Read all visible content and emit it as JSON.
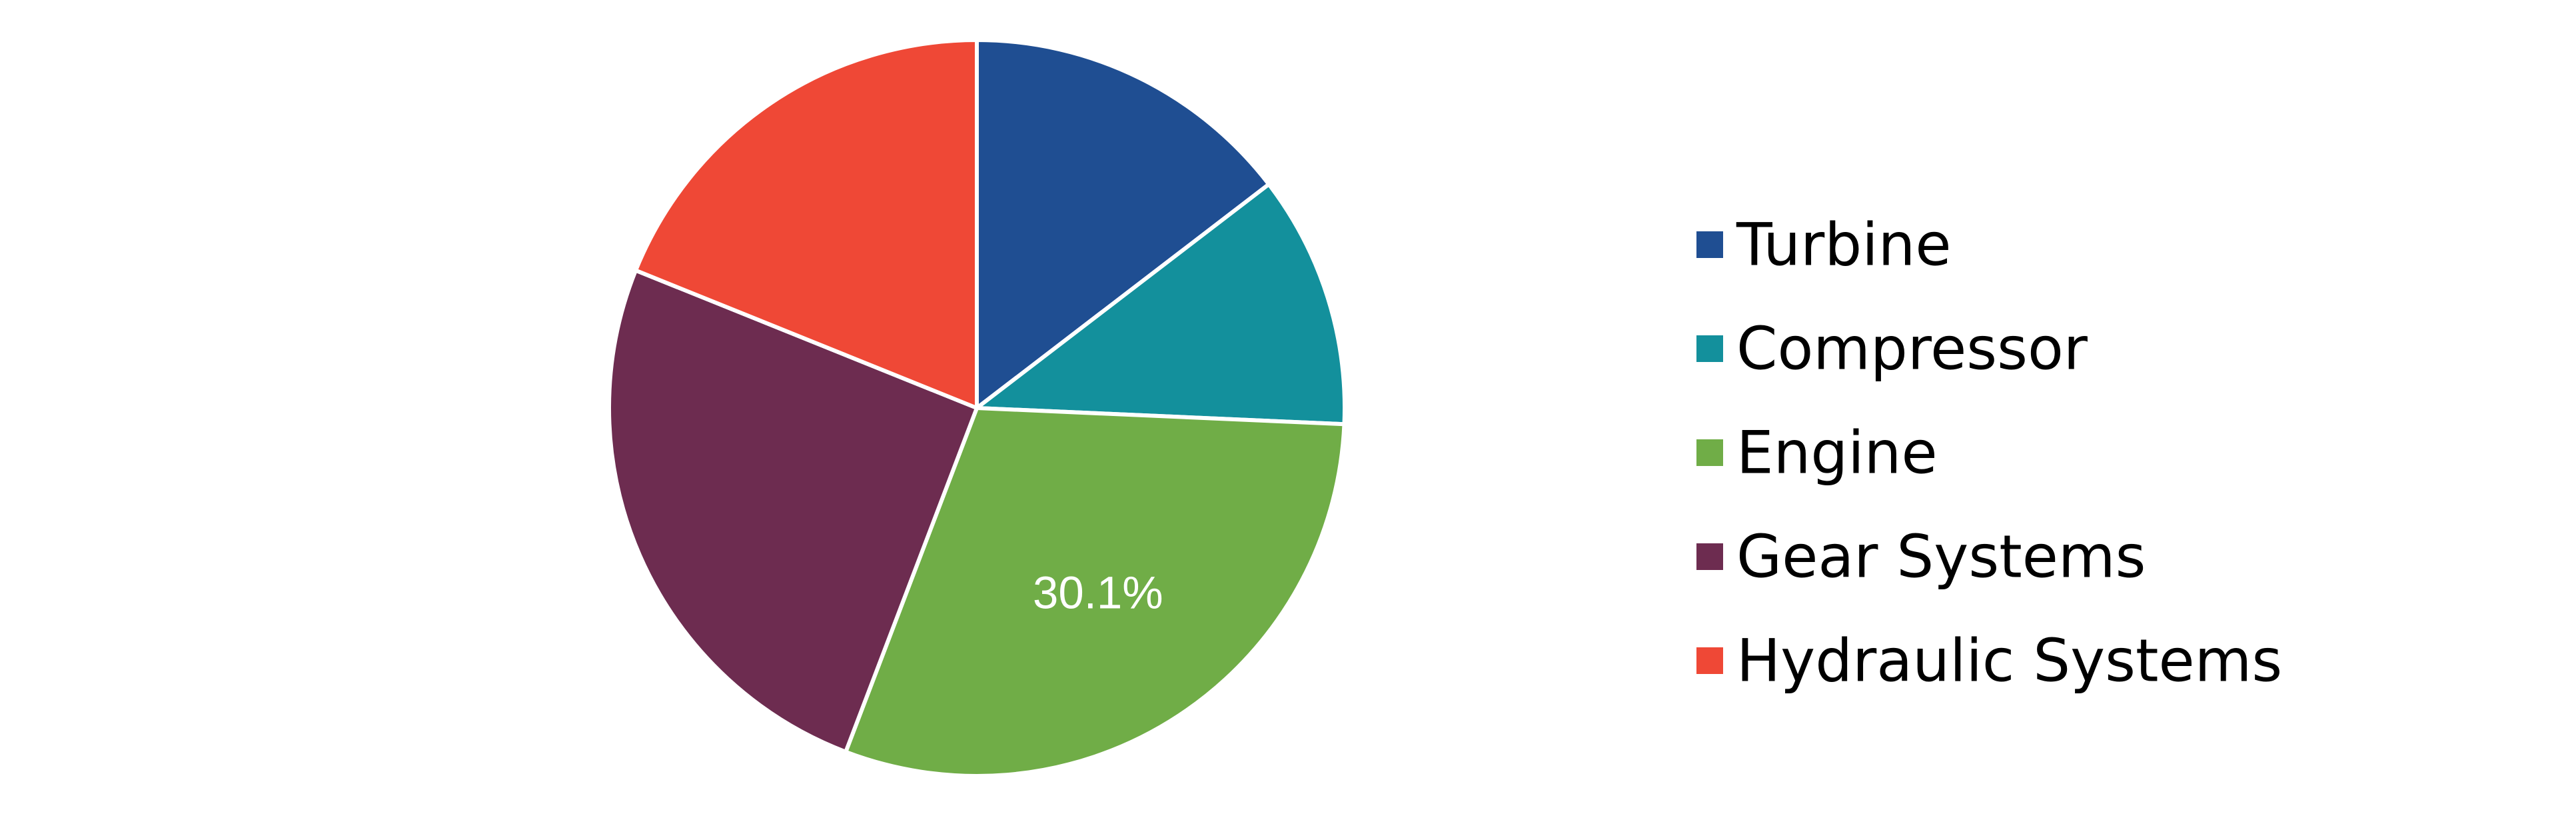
{
  "chart_data": {
    "type": "pie",
    "start_angle": "12 o'clock, clockwise",
    "slices": [
      {
        "label": "Turbine",
        "value": 14.6,
        "color": "#1F4E92",
        "value_label": ""
      },
      {
        "label": "Compressor",
        "value": 11.1,
        "color": "#13909C",
        "value_label": ""
      },
      {
        "label": "Engine",
        "value": 30.1,
        "color": "#70AD47",
        "value_label": "30.1%"
      },
      {
        "label": "Gear Systems",
        "value": 25.3,
        "color": "#6D2C50",
        "value_label": ""
      },
      {
        "label": "Hydraulic Systems",
        "value": 18.9,
        "color": "#EF4836",
        "value_label": ""
      }
    ],
    "slice_border_color": "#FFFFFF",
    "legend": {
      "position": "right"
    }
  }
}
